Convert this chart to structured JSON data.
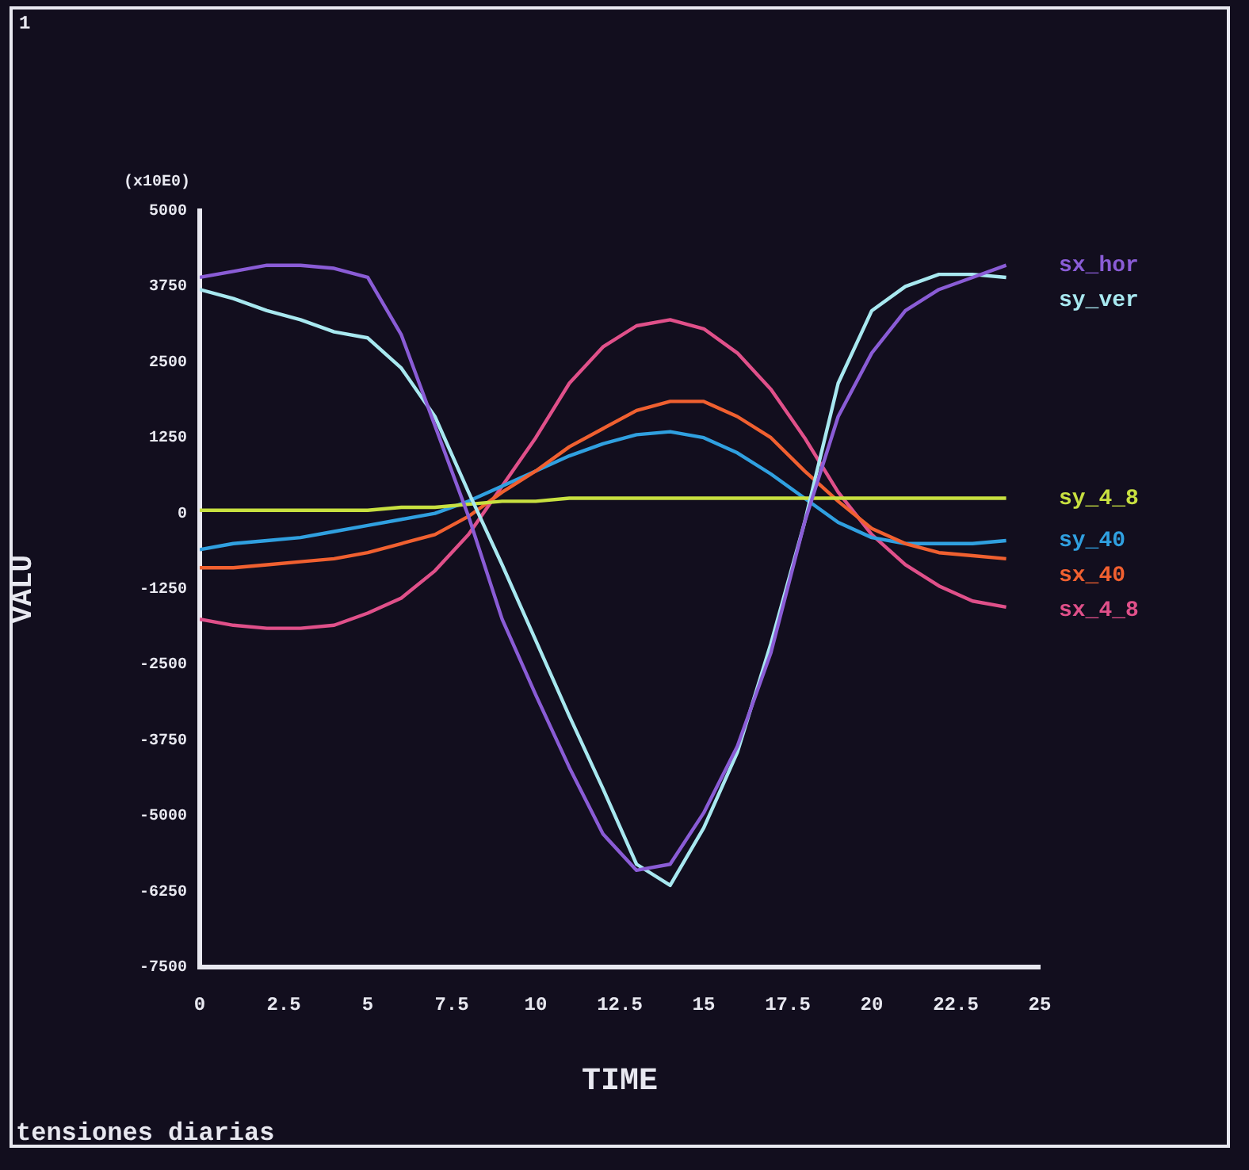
{
  "chart_data": {
    "type": "line",
    "xlabel": "TIME",
    "ylabel": "VALU",
    "annotations": [
      "1",
      "(x10E0)",
      "tensiones diarias"
    ],
    "x": [
      0,
      1,
      2,
      3,
      4,
      5,
      6,
      7,
      8,
      9,
      10,
      11,
      12,
      13,
      14,
      15,
      16,
      17,
      18,
      19,
      20,
      21,
      22,
      23,
      24
    ],
    "xlim": [
      0,
      25
    ],
    "xticks": [
      0,
      2.5,
      5,
      7.5,
      10,
      12.5,
      15,
      17.5,
      20,
      22.5,
      25
    ],
    "ylim": [
      -7500,
      5000
    ],
    "yticks": [
      -7500,
      -6250,
      -5000,
      -3750,
      -2500,
      -1250,
      0,
      1250,
      2500,
      3750,
      5000
    ],
    "marker": "none",
    "series": [
      {
        "name": "sx_hor",
        "color": "#8a5cd6",
        "values": [
          3900,
          4000,
          4100,
          4100,
          4050,
          3900,
          2950,
          1450,
          -50,
          -1750,
          -3000,
          -4200,
          -5300,
          -5900,
          -5800,
          -4950,
          -3850,
          -2300,
          -150,
          1600,
          2650,
          3350,
          3700,
          3900,
          4100
        ]
      },
      {
        "name": "sy_ver",
        "color": "#a8e8f0",
        "values": [
          3700,
          3550,
          3350,
          3200,
          3000,
          2900,
          2400,
          1600,
          350,
          -850,
          -2100,
          -3350,
          -4550,
          -5800,
          -6150,
          -5200,
          -3950,
          -2150,
          -150,
          2150,
          3350,
          3750,
          3950,
          3950,
          3900
        ]
      },
      {
        "name": "sy_4_8",
        "color": "#c8e040",
        "values": [
          50,
          50,
          50,
          50,
          50,
          50,
          100,
          100,
          150,
          200,
          200,
          250,
          250,
          250,
          250,
          250,
          250,
          250,
          250,
          250,
          250,
          250,
          250,
          250,
          250
        ]
      },
      {
        "name": "sx_40",
        "color": "#f06030",
        "values": [
          -900,
          -900,
          -850,
          -800,
          -750,
          -650,
          -500,
          -350,
          -50,
          350,
          700,
          1100,
          1400,
          1700,
          1850,
          1850,
          1600,
          1250,
          700,
          200,
          -250,
          -500,
          -650,
          -700,
          -750
        ]
      },
      {
        "name": "sy_40",
        "color": "#30a0e0",
        "values": [
          -600,
          -500,
          -450,
          -400,
          -300,
          -200,
          -100,
          0,
          200,
          450,
          700,
          950,
          1150,
          1300,
          1350,
          1250,
          1000,
          650,
          250,
          -150,
          -400,
          -500,
          -500,
          -500,
          -450
        ]
      },
      {
        "name": "sx_4_8",
        "color": "#e0508a",
        "values": [
          -1750,
          -1850,
          -1900,
          -1900,
          -1850,
          -1650,
          -1400,
          -950,
          -350,
          450,
          1250,
          2150,
          2750,
          3100,
          3200,
          3050,
          2650,
          2050,
          1250,
          350,
          -350,
          -850,
          -1200,
          -1450,
          -1550
        ]
      }
    ]
  }
}
